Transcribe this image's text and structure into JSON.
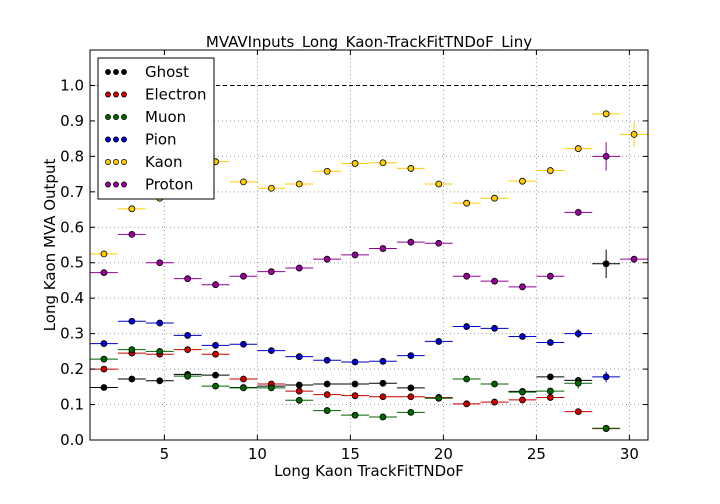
{
  "chart_data": {
    "type": "scatter",
    "title": "MVAVInputs_Long_Kaon-TrackFitTNDoF_Liny",
    "xlabel": "Long Kaon TrackFitTNDoF",
    "ylabel": "Long Kaon MVA Output",
    "xlim": [
      1,
      31
    ],
    "ylim": [
      0.0,
      1.1
    ],
    "xticks": [
      5,
      10,
      15,
      20,
      25,
      30
    ],
    "yticks": [
      "0.0",
      "0.1",
      "0.2",
      "0.3",
      "0.4",
      "0.5",
      "0.6",
      "0.7",
      "0.8",
      "0.9",
      "1.0"
    ],
    "grid": true,
    "reference_line": 1.0,
    "legend_position": "top-left",
    "bin_half_width": 0.75,
    "x": [
      1.75,
      3.25,
      4.75,
      6.25,
      7.75,
      9.25,
      10.75,
      12.25,
      13.75,
      15.25,
      16.75,
      18.25,
      19.75,
      21.25,
      22.75,
      24.25,
      25.75,
      27.25,
      28.75,
      30.25
    ],
    "series": [
      {
        "name": "Ghost",
        "color": "#000000",
        "values": [
          0.148,
          0.172,
          0.167,
          0.185,
          0.183,
          0.148,
          0.152,
          0.155,
          0.158,
          0.158,
          0.16,
          0.147,
          0.118,
          null,
          null,
          0.137,
          0.178,
          0.168,
          0.497,
          null
        ],
        "errors": [
          0.004,
          0.003,
          0.003,
          0.003,
          0.003,
          0.003,
          0.003,
          0.003,
          0.003,
          0.003,
          0.003,
          0.003,
          0.004,
          0,
          0,
          0.005,
          0.006,
          0.01,
          0.04,
          0
        ]
      },
      {
        "name": "Electron",
        "color": "#cc0000",
        "values": [
          0.2,
          0.245,
          0.242,
          0.255,
          0.242,
          0.172,
          0.158,
          0.138,
          0.128,
          0.125,
          0.122,
          0.122,
          0.12,
          0.102,
          0.107,
          0.113,
          0.12,
          0.08,
          0.032,
          null
        ],
        "errors": [
          0.004,
          0.003,
          0.003,
          0.003,
          0.003,
          0.003,
          0.003,
          0.003,
          0.003,
          0.003,
          0.003,
          0.003,
          0.003,
          0.003,
          0.003,
          0.004,
          0.005,
          0.008,
          0.006,
          0
        ]
      },
      {
        "name": "Muon",
        "color": "#006600",
        "values": [
          0.228,
          0.255,
          0.25,
          0.18,
          0.152,
          0.147,
          0.147,
          0.112,
          0.083,
          0.07,
          0.065,
          0.078,
          0.118,
          0.172,
          0.158,
          0.135,
          0.138,
          0.16,
          0.033,
          null
        ],
        "errors": [
          0.004,
          0.003,
          0.003,
          0.003,
          0.003,
          0.003,
          0.003,
          0.003,
          0.003,
          0.003,
          0.003,
          0.003,
          0.003,
          0.003,
          0.003,
          0.004,
          0.005,
          0.015,
          0.006,
          0
        ]
      },
      {
        "name": "Pion",
        "color": "#0000cc",
        "values": [
          0.272,
          0.335,
          0.33,
          0.295,
          0.267,
          0.27,
          0.252,
          0.235,
          0.225,
          0.22,
          0.222,
          0.238,
          0.278,
          0.32,
          0.315,
          0.292,
          0.275,
          0.3,
          0.178,
          null
        ],
        "errors": [
          0.004,
          0.003,
          0.003,
          0.003,
          0.003,
          0.003,
          0.003,
          0.003,
          0.003,
          0.003,
          0.003,
          0.003,
          0.003,
          0.003,
          0.003,
          0.004,
          0.004,
          0.012,
          0.015,
          0
        ]
      },
      {
        "name": "Kaon",
        "color": "#ffcc00",
        "values": [
          0.525,
          0.652,
          0.682,
          0.722,
          0.785,
          0.728,
          0.71,
          0.722,
          0.758,
          0.78,
          0.782,
          0.766,
          0.722,
          0.668,
          0.682,
          0.73,
          0.76,
          0.822,
          0.92,
          0.862
        ],
        "errors": [
          0.004,
          0.003,
          0.003,
          0.003,
          0.003,
          0.003,
          0.003,
          0.003,
          0.003,
          0.003,
          0.003,
          0.003,
          0.003,
          0.003,
          0.003,
          0.004,
          0.004,
          0.008,
          0.008,
          0.035
        ]
      },
      {
        "name": "Proton",
        "color": "#990099",
        "values": [
          0.472,
          0.58,
          0.5,
          0.455,
          0.438,
          0.462,
          0.475,
          0.485,
          0.51,
          0.522,
          0.54,
          0.558,
          0.555,
          0.462,
          0.448,
          0.432,
          0.462,
          0.642,
          0.8,
          0.51
        ],
        "errors": [
          0.004,
          0.003,
          0.003,
          0.003,
          0.003,
          0.003,
          0.003,
          0.003,
          0.003,
          0.003,
          0.003,
          0.003,
          0.003,
          0.003,
          0.003,
          0.004,
          0.004,
          0.01,
          0.04,
          0.004
        ]
      }
    ]
  }
}
